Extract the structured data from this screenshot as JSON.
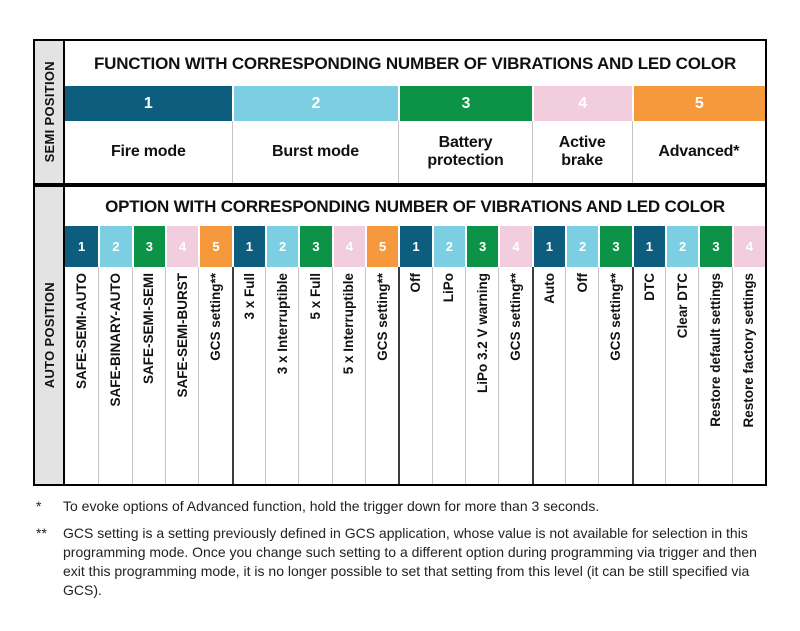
{
  "led_colors": [
    "#0d5d7e",
    "#7ccfe2",
    "#0c9347",
    "#f1cdde",
    "#f6993d"
  ],
  "semi_section": {
    "side_label": "SEMI POSITION",
    "header": "FUNCTION WITH CORRESPONDING NUMBER OF VIBRATIONS AND LED COLOR",
    "functions": [
      {
        "number": "1",
        "name": "Fire mode",
        "span": 5
      },
      {
        "number": "2",
        "name": "Burst mode",
        "span": 5
      },
      {
        "number": "3",
        "name": "Battery protection",
        "span": 4
      },
      {
        "number": "4",
        "name": "Active brake",
        "span": 3
      },
      {
        "number": "5",
        "name": "Advanced*",
        "span": 4
      }
    ]
  },
  "auto_section": {
    "side_label": "AUTO POSITION",
    "header": "OPTION WITH CORRESPONDING NUMBER OF VIBRATIONS AND LED COLOR",
    "groups": [
      {
        "function": "Fire mode",
        "options": [
          "SAFE-SEMI-AUTO",
          "SAFE-BINARY-AUTO",
          "SAFE-SEMI-SEMI",
          "SAFE-SEMI-BURST",
          "GCS setting**"
        ]
      },
      {
        "function": "Burst mode",
        "options": [
          "3 x Full",
          "3 x Interruptible",
          "5 x Full",
          "5 x Interruptible",
          "GCS setting**"
        ]
      },
      {
        "function": "Battery protection",
        "options": [
          "Off",
          "LiPo",
          "LiPo 3.2 V warning",
          "GCS setting**"
        ]
      },
      {
        "function": "Active brake",
        "options": [
          "Auto",
          "Off",
          "GCS setting**"
        ]
      },
      {
        "function": "Advanced",
        "options": [
          "DTC",
          "Clear DTC",
          "Restore default settings",
          "Restore factory settings"
        ]
      }
    ]
  },
  "footnotes": [
    {
      "marker": "*",
      "text": "To evoke options of Advanced function, hold the trigger down for more than 3 seconds."
    },
    {
      "marker": "**",
      "text": "GCS setting is a setting previously defined in GCS application, whose value is not available for selection in this programming mode. Once you change such setting to a different option during programming via trigger and then exit this programming mode, it is no longer possible to set that setting from this level (it can be still specified via GCS)."
    }
  ]
}
